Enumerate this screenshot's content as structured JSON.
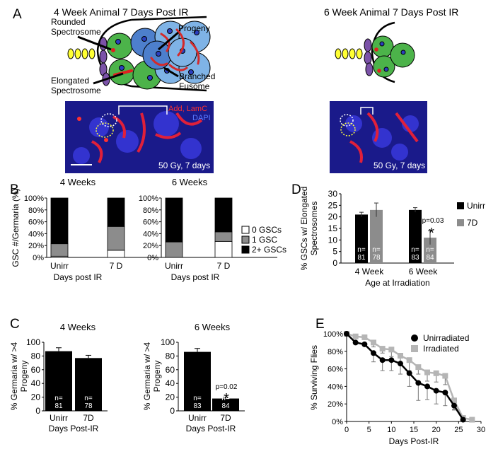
{
  "panels": {
    "A": "A",
    "B": "B",
    "C": "C",
    "D": "D",
    "E": "E"
  },
  "panelA": {
    "left_title": "4 Week Animal 7 Days Post IR",
    "right_title": "6 Week Animal 7 Days Post IR",
    "labels": {
      "rounded": [
        "Rounded",
        "Spectrosome"
      ],
      "elongated": [
        "Elongated",
        "Spectrosome"
      ],
      "progeny": "Progeny",
      "branched": [
        "Branched",
        "Fusome"
      ]
    },
    "micro_left": {
      "stain1": "Add, LamC",
      "stain2": "DAPI",
      "caption": "50 Gy, 7 days"
    },
    "micro_right": {
      "caption": "50 Gy, 7 days"
    }
  },
  "colors": {
    "black": "#000000",
    "gray": "#8c8c8c",
    "white": "#ffffff",
    "light_gray": "#b5b5b5"
  },
  "chart_data": [
    {
      "type": "bar",
      "id": "B-4wk",
      "title": "4 Weeks",
      "ylabel": "GSC #/Germaria (%)",
      "xlabel": "Days post IR",
      "categories": [
        "Unirr",
        "7 D"
      ],
      "yticks": [
        "0%",
        "20%",
        "40%",
        "60%",
        "80%",
        "100%"
      ],
      "ylim": [
        0,
        100
      ],
      "stacked": true,
      "series": [
        {
          "name": "0 GSCs",
          "values": [
            2,
            12
          ]
        },
        {
          "name": "1 GSC",
          "values": [
            21,
            40
          ]
        },
        {
          "name": "2+ GSCs",
          "values": [
            77,
            48
          ]
        }
      ]
    },
    {
      "type": "bar",
      "id": "B-6wk",
      "title": "6 Weeks",
      "xlabel": "Days post IR",
      "categories": [
        "Unirr",
        "7 D"
      ],
      "yticks": [
        "0%",
        "20%",
        "40%",
        "60%",
        "80%",
        "100%"
      ],
      "ylim": [
        0,
        100
      ],
      "stacked": true,
      "series": [
        {
          "name": "0 GSCs",
          "values": [
            0,
            27
          ]
        },
        {
          "name": "1 GSC",
          "values": [
            26,
            16
          ]
        },
        {
          "name": "2+ GSCs",
          "values": [
            74,
            57
          ]
        }
      ],
      "legend": [
        "0 GSCs",
        "1 GSC",
        "2+ GSCs"
      ]
    },
    {
      "type": "bar",
      "id": "C-4wk",
      "title": "4 Weeks",
      "ylabel": "% Germaria w/ >4 Progeny",
      "xlabel": "Days Post-IR",
      "categories": [
        "Unirr",
        "7D"
      ],
      "yticks": [
        "0",
        "20",
        "40",
        "60",
        "80",
        "100"
      ],
      "ylim": [
        0,
        100
      ],
      "values": [
        87,
        77
      ],
      "errors": [
        5,
        4
      ],
      "n_labels": [
        [
          "n=",
          "81"
        ],
        [
          "n=",
          "78"
        ]
      ]
    },
    {
      "type": "bar",
      "id": "C-6wk",
      "title": "6 Weeks",
      "ylabel": "% Germaria w/ >4 Progeny",
      "xlabel": "Days Post-IR",
      "categories": [
        "Unirr",
        "7D"
      ],
      "yticks": [
        "0",
        "20",
        "40",
        "60",
        "80",
        "100"
      ],
      "ylim": [
        0,
        100
      ],
      "values": [
        86,
        18
      ],
      "errors": [
        5,
        2
      ],
      "n_labels": [
        [
          "n=",
          "83"
        ],
        [
          "n=",
          "84"
        ]
      ],
      "annotation": {
        "p": "p=0.02",
        "star": "*"
      }
    },
    {
      "type": "bar",
      "id": "D",
      "ylabel": "% GSCs w/ Elongated Spectrosomes",
      "xlabel": "Age at Irradiation",
      "categories": [
        "4 Week",
        "6 Week"
      ],
      "yticks": [
        "0",
        "5",
        "10",
        "15",
        "20",
        "25",
        "30"
      ],
      "ylim": [
        0,
        30
      ],
      "series": [
        {
          "name": "Unirr",
          "values": [
            21,
            23
          ],
          "errors": [
            1,
            1
          ]
        },
        {
          "name": "7D",
          "values": [
            23,
            11
          ],
          "errors": [
            3,
            3
          ]
        }
      ],
      "n_labels": [
        [
          "n=",
          "81"
        ],
        [
          "n=",
          "78"
        ],
        [
          "n=",
          "83"
        ],
        [
          "n=",
          "84"
        ]
      ],
      "annotation": {
        "p": "p=0.03",
        "star": "*"
      }
    },
    {
      "type": "line",
      "id": "E",
      "ylabel": "% Surviving Flies",
      "xlabel": "Days Post-IR",
      "xticks": [
        "0",
        "5",
        "10",
        "15",
        "20",
        "25",
        "30"
      ],
      "yticks": [
        "0%",
        "20%",
        "40%",
        "60%",
        "80%",
        "100%"
      ],
      "xlim": [
        0,
        30
      ],
      "ylim": [
        0,
        100
      ],
      "series": [
        {
          "name": "Unirradiated",
          "x": [
            0,
            2,
            4,
            6,
            8,
            10,
            12,
            14,
            16,
            18,
            20,
            22,
            24,
            26
          ],
          "y": [
            100,
            90,
            88,
            78,
            70,
            70,
            66,
            55,
            44,
            40,
            35,
            33,
            18,
            2
          ],
          "err": [
            0,
            0,
            0,
            10,
            12,
            12,
            12,
            15,
            20,
            15,
            15,
            15,
            5,
            0
          ]
        },
        {
          "name": "Irradiated",
          "x": [
            0,
            2,
            4,
            6,
            8,
            10,
            12,
            14,
            16,
            18,
            20,
            22,
            24,
            26,
            28
          ],
          "y": [
            100,
            97,
            96,
            90,
            83,
            82,
            75,
            70,
            62,
            56,
            55,
            52,
            24,
            4,
            2
          ],
          "err": [
            0,
            0,
            0,
            5,
            5,
            8,
            8,
            12,
            8,
            10,
            10,
            10,
            10,
            0,
            0
          ]
        }
      ]
    }
  ]
}
